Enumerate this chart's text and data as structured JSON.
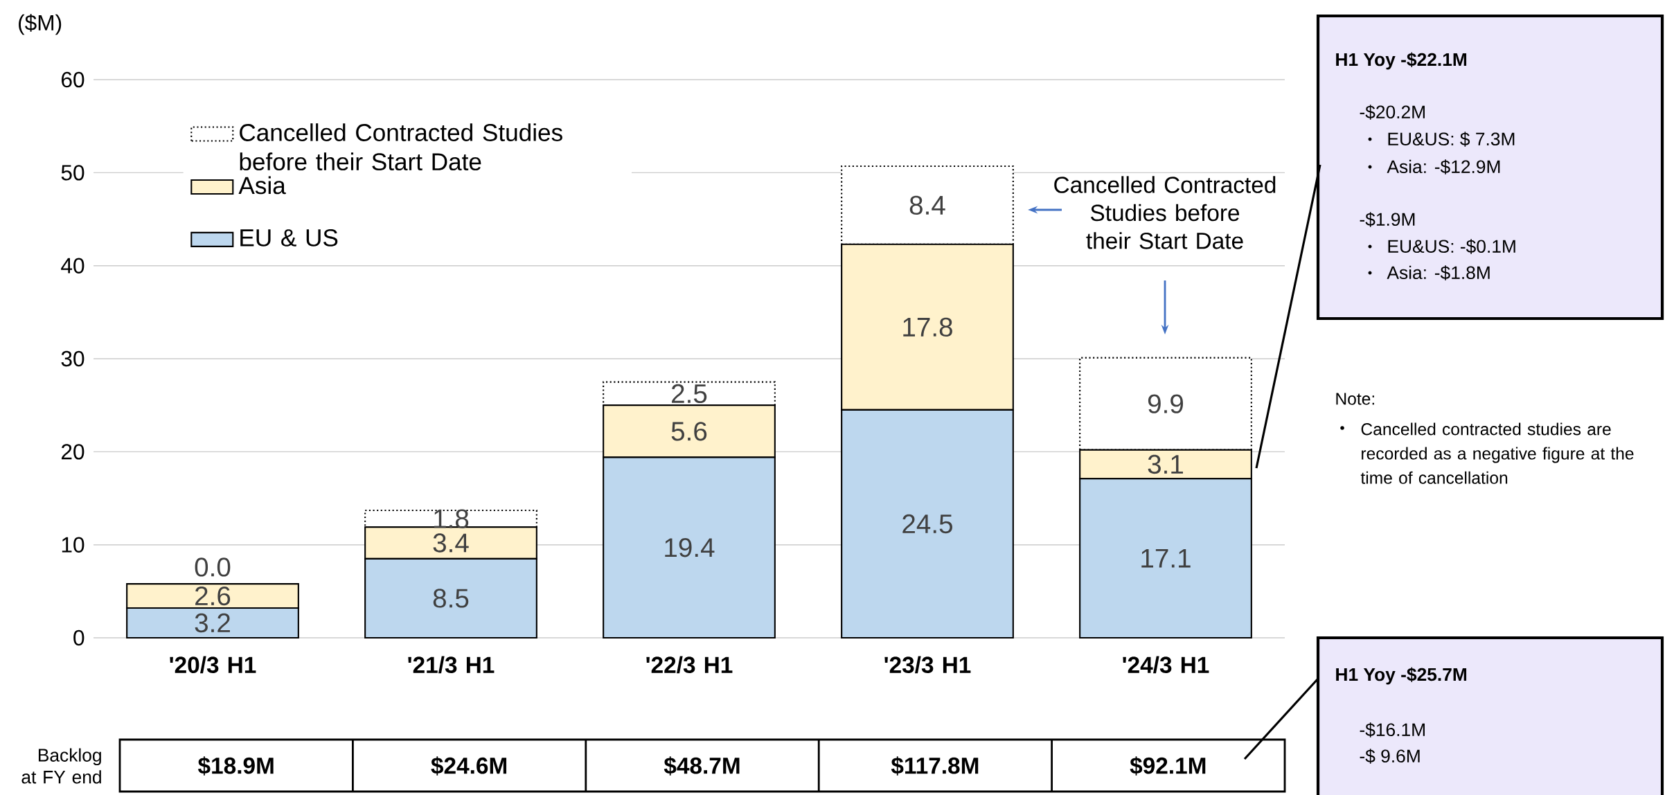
{
  "chart_data": {
    "type": "bar",
    "stacked": true,
    "ylabel": "($M)",
    "categories": [
      "'20/3 H1",
      "'21/3 H1",
      "'22/3 H1",
      "'23/3 H1",
      "'24/3 H1"
    ],
    "series": [
      {
        "name": "EU & US",
        "color": "#bdd7ee",
        "values": [
          3.2,
          8.5,
          19.4,
          24.5,
          17.1
        ],
        "value_labels": [
          "3.2",
          "8.5",
          "19.4",
          "24.5",
          "17.1"
        ]
      },
      {
        "name": "Asia",
        "color": "#fff2cc",
        "values": [
          2.6,
          3.4,
          5.6,
          17.8,
          3.1
        ],
        "value_labels": [
          "2.6",
          "3.4",
          "5.6",
          "17.8",
          "3.1"
        ]
      },
      {
        "name": "Cancelled Contracted Studies before their Start Date",
        "color": "#ffffff",
        "line_style": "dotted",
        "values": [
          0.0,
          1.8,
          2.5,
          8.4,
          9.9
        ],
        "value_labels": [
          "0.0",
          "1.8",
          "2.5",
          "8.4",
          "9.9"
        ]
      }
    ],
    "ylim": [
      0,
      60
    ],
    "yticks": [
      0,
      10,
      20,
      30,
      40,
      50,
      60
    ],
    "grid": "y",
    "legend": "top left",
    "annotations": [
      "Cancelled Contracted Studies before their Start Date",
      "Backlog at FY end",
      "$18.9M",
      "$24.6M",
      "$48.7M",
      "$117.8M",
      "$92.1M",
      "H1 Yoy   -$22.1M",
      "-$20.2M",
      "EU&US: $ 7.3M",
      "Asia: -$12.9M",
      "-$1.9M",
      "EU&US: -$0.1M",
      "Asia: -$1.8M",
      "H1 Yoy   -$25.7M",
      "-$16.1M",
      "-$ 9.6M",
      "Note:",
      "Cancelled contracted studies are recorded as a negative figure at the time of cancellation"
    ]
  }
}
